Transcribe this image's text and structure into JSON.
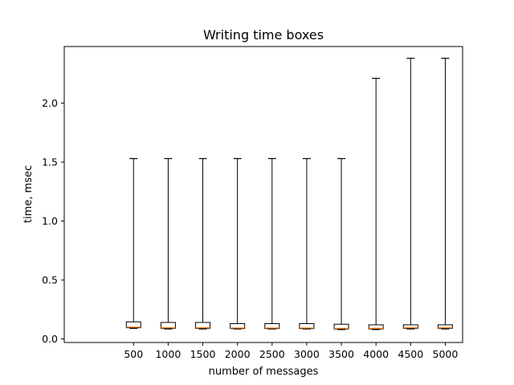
{
  "chart_data": {
    "type": "box",
    "title": "Writing time boxes",
    "xlabel": "number of messages",
    "ylabel": "time, msec",
    "categories": [
      "500",
      "1000",
      "1500",
      "2000",
      "2500",
      "3000",
      "3500",
      "4000",
      "4500",
      "5000"
    ],
    "ylim": [
      -0.03,
      2.48
    ],
    "yticks": [
      0.0,
      0.5,
      1.0,
      1.5,
      2.0
    ],
    "ytick_labels": [
      "0.0",
      "0.5",
      "1.0",
      "1.5",
      "2.0"
    ],
    "grid": false,
    "boxes": [
      {
        "category": "500",
        "whislo": 0.09,
        "q1": 0.095,
        "med": 0.1,
        "q3": 0.145,
        "whishi": 1.53
      },
      {
        "category": "1000",
        "whislo": 0.085,
        "q1": 0.09,
        "med": 0.095,
        "q3": 0.14,
        "whishi": 1.53
      },
      {
        "category": "1500",
        "whislo": 0.085,
        "q1": 0.09,
        "med": 0.095,
        "q3": 0.14,
        "whishi": 1.53
      },
      {
        "category": "2000",
        "whislo": 0.085,
        "q1": 0.088,
        "med": 0.093,
        "q3": 0.13,
        "whishi": 1.53
      },
      {
        "category": "2500",
        "whislo": 0.085,
        "q1": 0.088,
        "med": 0.093,
        "q3": 0.13,
        "whishi": 1.53
      },
      {
        "category": "3000",
        "whislo": 0.085,
        "q1": 0.088,
        "med": 0.093,
        "q3": 0.13,
        "whishi": 1.53
      },
      {
        "category": "3500",
        "whislo": 0.08,
        "q1": 0.085,
        "med": 0.09,
        "q3": 0.125,
        "whishi": 1.53
      },
      {
        "category": "4000",
        "whislo": 0.08,
        "q1": 0.085,
        "med": 0.09,
        "q3": 0.12,
        "whishi": 2.21
      },
      {
        "category": "4500",
        "whislo": 0.085,
        "q1": 0.09,
        "med": 0.095,
        "q3": 0.12,
        "whishi": 2.38
      },
      {
        "category": "5000",
        "whislo": 0.085,
        "q1": 0.09,
        "med": 0.095,
        "q3": 0.12,
        "whishi": 2.38
      }
    ],
    "colors": {
      "box": "#000000",
      "median": "#ff7f0e",
      "whisker": "#000000",
      "axes": "#000000"
    }
  }
}
